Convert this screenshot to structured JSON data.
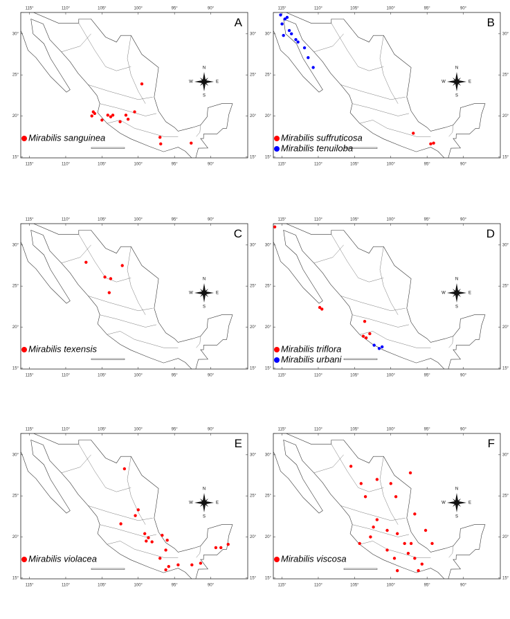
{
  "xlim": [
    -116.2,
    -84.9
  ],
  "ylim": [
    14.9,
    32.6
  ],
  "lon_ticks": [
    {
      "value": -115,
      "label": "115°"
    },
    {
      "value": -110,
      "label": "110°"
    },
    {
      "value": -105,
      "label": "105°"
    },
    {
      "value": -100,
      "label": "100°"
    },
    {
      "value": -95,
      "label": "95°"
    },
    {
      "value": -90,
      "label": "90°"
    }
  ],
  "lat_ticks": [
    {
      "value": 30,
      "label": "30°"
    },
    {
      "value": 25,
      "label": "25°"
    },
    {
      "value": 20,
      "label": "20°"
    },
    {
      "value": 15,
      "label": "15°"
    }
  ],
  "compass": {
    "n": "N",
    "s": "S",
    "e": "E",
    "w": "W"
  },
  "panels": [
    {
      "letter": "A",
      "species": [
        {
          "name": "Mirabilis sanguinea",
          "color": "#ff0000",
          "points": [
            [
              -106.2,
              20.5
            ],
            [
              -106.4,
              20.0
            ],
            [
              -106.0,
              20.3
            ],
            [
              -104.2,
              20.1
            ],
            [
              -103.8,
              19.9
            ],
            [
              -103.5,
              20.1
            ],
            [
              -101.7,
              20.1
            ],
            [
              -101.4,
              19.6
            ],
            [
              -102.5,
              19.3
            ],
            [
              -100.5,
              20.5
            ],
            [
              -97.0,
              17.4
            ],
            [
              -96.9,
              16.6
            ],
            [
              -92.7,
              16.7
            ],
            [
              -99.5,
              23.9
            ],
            [
              -105.0,
              19.5
            ]
          ]
        }
      ]
    },
    {
      "letter": "B",
      "species": [
        {
          "name": "Mirabilis suffruticosa",
          "color": "#ff0000",
          "points": [
            [
              -96.9,
              17.9
            ],
            [
              -94.5,
              16.6
            ],
            [
              -94.1,
              16.7
            ]
          ]
        },
        {
          "name": "Mirabilis tenuiloba",
          "color": "#0000ff",
          "points": [
            [
              -115.2,
              32.3
            ],
            [
              -114.6,
              31.8
            ],
            [
              -115.0,
              31.2
            ],
            [
              -114.0,
              30.4
            ],
            [
              -113.7,
              30.0
            ],
            [
              -113.1,
              29.3
            ],
            [
              -112.8,
              29.0
            ],
            [
              -111.9,
              28.3
            ],
            [
              -111.4,
              27.1
            ],
            [
              -110.7,
              25.9
            ],
            [
              -114.8,
              29.8
            ],
            [
              -114.3,
              32.0
            ]
          ]
        }
      ]
    },
    {
      "letter": "C",
      "species": [
        {
          "name": "Mirabilis texensis",
          "color": "#ff0000",
          "points": [
            [
              -107.2,
              27.9
            ],
            [
              -104.6,
              26.1
            ],
            [
              -103.8,
              25.9
            ],
            [
              -102.2,
              27.5
            ],
            [
              -104.0,
              24.2
            ]
          ]
        }
      ]
    },
    {
      "letter": "D",
      "species": [
        {
          "name": "Mirabilis triflora",
          "color": "#ff0000",
          "points": [
            [
              -116.0,
              32.2
            ],
            [
              -109.8,
              22.4
            ],
            [
              -109.5,
              22.2
            ],
            [
              -103.8,
              18.9
            ],
            [
              -103.4,
              18.7
            ],
            [
              -102.9,
              19.2
            ],
            [
              -103.6,
              20.7
            ]
          ]
        },
        {
          "name": "Mirabilis urbani",
          "color": "#0000ff",
          "points": [
            [
              -101.6,
              17.4
            ],
            [
              -101.2,
              17.6
            ],
            [
              -102.3,
              17.8
            ]
          ]
        }
      ]
    },
    {
      "letter": "E",
      "species": [
        {
          "name": "Mirabilis violacea",
          "color": "#ff0000",
          "points": [
            [
              -101.9,
              28.3
            ],
            [
              -100.0,
              23.3
            ],
            [
              -100.4,
              22.6
            ],
            [
              -102.4,
              21.6
            ],
            [
              -99.1,
              20.4
            ],
            [
              -98.6,
              19.9
            ],
            [
              -98.9,
              19.5
            ],
            [
              -98.1,
              19.4
            ],
            [
              -96.7,
              20.2
            ],
            [
              -96.0,
              19.6
            ],
            [
              -96.2,
              18.4
            ],
            [
              -97.0,
              17.4
            ],
            [
              -95.8,
              16.4
            ],
            [
              -96.2,
              16.0
            ],
            [
              -94.5,
              16.6
            ],
            [
              -88.6,
              18.7
            ],
            [
              -87.6,
              19.1
            ],
            [
              -89.3,
              18.7
            ],
            [
              -92.6,
              16.6
            ],
            [
              -91.4,
              16.8
            ]
          ]
        }
      ]
    },
    {
      "letter": "F",
      "species": [
        {
          "name": "Mirabilis viscosa",
          "color": "#ff0000",
          "points": [
            [
              -105.5,
              28.6
            ],
            [
              -104.1,
              26.5
            ],
            [
              -101.9,
              27.0
            ],
            [
              -103.5,
              24.9
            ],
            [
              -100.0,
              26.5
            ],
            [
              -99.3,
              24.9
            ],
            [
              -101.9,
              22.1
            ],
            [
              -102.4,
              21.2
            ],
            [
              -100.5,
              20.8
            ],
            [
              -99.1,
              20.4
            ],
            [
              -98.1,
              19.2
            ],
            [
              -97.2,
              19.2
            ],
            [
              -97.6,
              18.0
            ],
            [
              -96.7,
              17.4
            ],
            [
              -95.7,
              16.7
            ],
            [
              -96.2,
              15.9
            ],
            [
              -104.3,
              19.2
            ],
            [
              -102.8,
              20.0
            ],
            [
              -100.5,
              18.4
            ],
            [
              -99.5,
              17.4
            ],
            [
              -99.1,
              15.9
            ],
            [
              -94.3,
              19.2
            ],
            [
              -95.2,
              20.8
            ],
            [
              -96.7,
              22.8
            ],
            [
              -97.3,
              27.8
            ]
          ]
        }
      ]
    }
  ]
}
